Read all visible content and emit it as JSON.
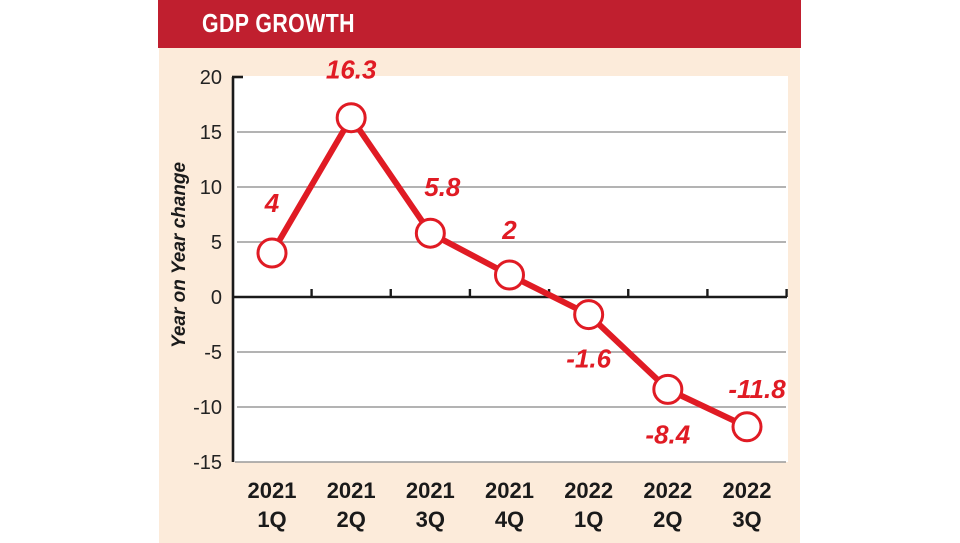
{
  "chart_data": {
    "type": "line",
    "title": "GDP GROWTH",
    "xlabel": "",
    "ylabel": "Year on Year change",
    "ylim": [
      -15,
      20
    ],
    "yticks": [
      20,
      15,
      10,
      5,
      0,
      -5,
      -10,
      -15
    ],
    "grid": true,
    "categories": [
      {
        "year": "2021",
        "quarter": "1Q"
      },
      {
        "year": "2021",
        "quarter": "2Q"
      },
      {
        "year": "2021",
        "quarter": "3Q"
      },
      {
        "year": "2021",
        "quarter": "4Q"
      },
      {
        "year": "2022",
        "quarter": "1Q"
      },
      {
        "year": "2022",
        "quarter": "2Q"
      },
      {
        "year": "2022",
        "quarter": "3Q"
      }
    ],
    "series": [
      {
        "name": "GDP growth",
        "values": [
          4,
          16.3,
          5.8,
          2,
          -1.6,
          -8.4,
          -11.8
        ],
        "labels": [
          "4",
          "16.3",
          "5.8",
          "2",
          "-1.6",
          "-8.4",
          "-11.8"
        ],
        "color": "#e01b24"
      }
    ],
    "colors": {
      "header": "#c01f2f",
      "panel": "#fcebda",
      "plot": "#ffffff",
      "grid": "#9a9a9a",
      "axis": "#1a1a1a"
    }
  }
}
